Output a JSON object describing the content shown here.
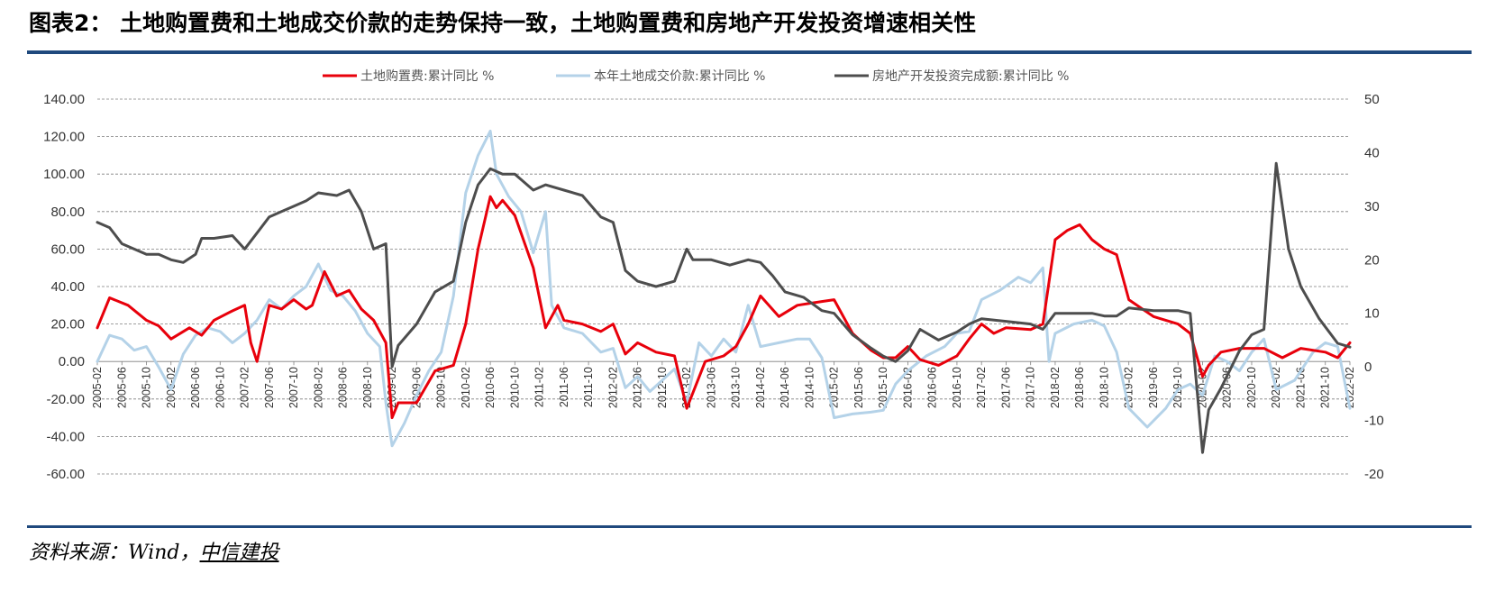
{
  "header": {
    "title": "图表2：  土地购置费和土地成交价款的走势保持一致，土地购置费和房地产开发投资增速相关性"
  },
  "source": {
    "prefix": "资料来源：Wind，",
    "org": "中信建投"
  },
  "colors": {
    "rule": "#1f497d",
    "series_red": "#e8000b",
    "series_light": "#b4d2e8",
    "series_dark": "#4d4d4d"
  },
  "chart_data": {
    "type": "line",
    "x_start": "2005-02",
    "x_end": "2022-02",
    "x_tick_labels": [
      "2005-02",
      "2005-06",
      "2005-10",
      "2006-02",
      "2006-06",
      "2006-10",
      "2007-02",
      "2007-06",
      "2007-10",
      "2008-02",
      "2008-06",
      "2008-10",
      "2009-02",
      "2009-06",
      "2009-10",
      "2010-02",
      "2010-06",
      "2010-10",
      "2011-02",
      "2011-06",
      "2011-10",
      "2012-02",
      "2012-06",
      "2012-10",
      "2013-02",
      "2013-06",
      "2013-10",
      "2014-02",
      "2014-06",
      "2014-10",
      "2015-02",
      "2015-06",
      "2015-10",
      "2016-02",
      "2016-06",
      "2016-10",
      "2017-02",
      "2017-06",
      "2017-10",
      "2018-02",
      "2018-06",
      "2018-10",
      "2019-02",
      "2019-06",
      "2019-10",
      "2020-02",
      "2020-06",
      "2020-10",
      "2021-02",
      "2021-06",
      "2021-10",
      "2022-02"
    ],
    "y_left": {
      "min": -60,
      "max": 140,
      "step": 20,
      "ticks": [
        "140.00",
        "120.00",
        "100.00",
        "80.00",
        "60.00",
        "40.00",
        "20.00",
        "0.00",
        "-20.00",
        "-40.00",
        "-60.00"
      ]
    },
    "y_right": {
      "min": -20,
      "max": 50,
      "step": 10,
      "ticks": [
        "50",
        "40",
        "30",
        "20",
        "10",
        "0",
        "-10",
        "-20"
      ]
    },
    "grid": true,
    "legend_position": "top",
    "series": [
      {
        "name": "土地购置费:累计同比 %",
        "axis": "left",
        "color": "#e8000b",
        "points": [
          [
            "2005-02",
            18
          ],
          [
            "2005-04",
            34
          ],
          [
            "2005-07",
            30
          ],
          [
            "2005-10",
            22
          ],
          [
            "2005-12",
            19
          ],
          [
            "2006-02",
            12
          ],
          [
            "2006-05",
            18
          ],
          [
            "2006-07",
            14
          ],
          [
            "2006-09",
            22
          ],
          [
            "2006-12",
            27
          ],
          [
            "2007-02",
            30
          ],
          [
            "2007-03",
            10
          ],
          [
            "2007-04",
            0
          ],
          [
            "2007-06",
            30
          ],
          [
            "2007-08",
            28
          ],
          [
            "2007-10",
            33
          ],
          [
            "2007-12",
            28
          ],
          [
            "2008-01",
            30
          ],
          [
            "2008-03",
            48
          ],
          [
            "2008-05",
            35
          ],
          [
            "2008-07",
            38
          ],
          [
            "2008-09",
            28
          ],
          [
            "2008-11",
            22
          ],
          [
            "2009-01",
            10
          ],
          [
            "2009-02",
            -30
          ],
          [
            "2009-03",
            -22
          ],
          [
            "2009-06",
            -22
          ],
          [
            "2009-09",
            -5
          ],
          [
            "2009-12",
            -2
          ],
          [
            "2010-02",
            20
          ],
          [
            "2010-04",
            60
          ],
          [
            "2010-06",
            88
          ],
          [
            "2010-07",
            82
          ],
          [
            "2010-08",
            86
          ],
          [
            "2010-10",
            78
          ],
          [
            "2011-01",
            50
          ],
          [
            "2011-03",
            18
          ],
          [
            "2011-05",
            30
          ],
          [
            "2011-06",
            22
          ],
          [
            "2011-09",
            20
          ],
          [
            "2011-12",
            16
          ],
          [
            "2012-02",
            20
          ],
          [
            "2012-04",
            4
          ],
          [
            "2012-06",
            10
          ],
          [
            "2012-09",
            5
          ],
          [
            "2012-12",
            3
          ],
          [
            "2013-02",
            -25
          ],
          [
            "2013-05",
            0
          ],
          [
            "2013-08",
            3
          ],
          [
            "2013-10",
            8
          ],
          [
            "2013-12",
            20
          ],
          [
            "2014-02",
            35
          ],
          [
            "2014-05",
            24
          ],
          [
            "2014-08",
            30
          ],
          [
            "2014-12",
            32
          ],
          [
            "2015-02",
            33
          ],
          [
            "2015-05",
            15
          ],
          [
            "2015-08",
            6
          ],
          [
            "2015-10",
            2
          ],
          [
            "2015-12",
            2
          ],
          [
            "2016-02",
            8
          ],
          [
            "2016-04",
            1
          ],
          [
            "2016-07",
            -2
          ],
          [
            "2016-10",
            3
          ],
          [
            "2016-12",
            12
          ],
          [
            "2017-02",
            20
          ],
          [
            "2017-04",
            15
          ],
          [
            "2017-06",
            18
          ],
          [
            "2017-10",
            17
          ],
          [
            "2017-12",
            20
          ],
          [
            "2018-02",
            65
          ],
          [
            "2018-04",
            70
          ],
          [
            "2018-06",
            73
          ],
          [
            "2018-08",
            65
          ],
          [
            "2018-10",
            60
          ],
          [
            "2018-12",
            57
          ],
          [
            "2019-02",
            33
          ],
          [
            "2019-06",
            24
          ],
          [
            "2019-10",
            20
          ],
          [
            "2019-12",
            15
          ],
          [
            "2020-02",
            -8
          ],
          [
            "2020-03",
            -2
          ],
          [
            "2020-05",
            5
          ],
          [
            "2020-08",
            7
          ],
          [
            "2020-12",
            7
          ],
          [
            "2021-03",
            2
          ],
          [
            "2021-06",
            7
          ],
          [
            "2021-10",
            5
          ],
          [
            "2021-12",
            2
          ],
          [
            "2022-02",
            10
          ]
        ]
      },
      {
        "name": "本年土地成交价款:累计同比 %",
        "axis": "left",
        "color": "#b4d2e8",
        "points": [
          [
            "2005-02",
            0
          ],
          [
            "2005-04",
            14
          ],
          [
            "2005-06",
            12
          ],
          [
            "2005-08",
            6
          ],
          [
            "2005-10",
            8
          ],
          [
            "2005-12",
            -3
          ],
          [
            "2006-02",
            -15
          ],
          [
            "2006-04",
            4
          ],
          [
            "2006-06",
            14
          ],
          [
            "2006-08",
            18
          ],
          [
            "2006-10",
            16
          ],
          [
            "2006-12",
            10
          ],
          [
            "2007-02",
            15
          ],
          [
            "2007-04",
            22
          ],
          [
            "2007-06",
            33
          ],
          [
            "2007-08",
            28
          ],
          [
            "2007-10",
            35
          ],
          [
            "2007-12",
            40
          ],
          [
            "2008-02",
            52
          ],
          [
            "2008-04",
            38
          ],
          [
            "2008-06",
            35
          ],
          [
            "2008-08",
            27
          ],
          [
            "2008-10",
            15
          ],
          [
            "2008-12",
            8
          ],
          [
            "2009-01",
            -22
          ],
          [
            "2009-02",
            -45
          ],
          [
            "2009-04",
            -33
          ],
          [
            "2009-06",
            -18
          ],
          [
            "2009-08",
            -5
          ],
          [
            "2009-10",
            5
          ],
          [
            "2009-12",
            35
          ],
          [
            "2010-02",
            90
          ],
          [
            "2010-04",
            110
          ],
          [
            "2010-06",
            123
          ],
          [
            "2010-07",
            100
          ],
          [
            "2010-09",
            88
          ],
          [
            "2010-11",
            80
          ],
          [
            "2011-01",
            58
          ],
          [
            "2011-03",
            80
          ],
          [
            "2011-04",
            30
          ],
          [
            "2011-06",
            18
          ],
          [
            "2011-09",
            15
          ],
          [
            "2011-12",
            5
          ],
          [
            "2012-02",
            7
          ],
          [
            "2012-04",
            -14
          ],
          [
            "2012-06",
            -8
          ],
          [
            "2012-08",
            -16
          ],
          [
            "2012-10",
            -10
          ],
          [
            "2012-12",
            -4
          ],
          [
            "2013-02",
            -22
          ],
          [
            "2013-04",
            10
          ],
          [
            "2013-06",
            3
          ],
          [
            "2013-08",
            12
          ],
          [
            "2013-10",
            5
          ],
          [
            "2013-12",
            30
          ],
          [
            "2014-02",
            8
          ],
          [
            "2014-05",
            10
          ],
          [
            "2014-08",
            12
          ],
          [
            "2014-10",
            12
          ],
          [
            "2014-12",
            2
          ],
          [
            "2015-02",
            -30
          ],
          [
            "2015-05",
            -28
          ],
          [
            "2015-08",
            -27
          ],
          [
            "2015-10",
            -26
          ],
          [
            "2015-12",
            -12
          ],
          [
            "2016-02",
            -5
          ],
          [
            "2016-05",
            3
          ],
          [
            "2016-08",
            8
          ],
          [
            "2016-10",
            15
          ],
          [
            "2016-12",
            16
          ],
          [
            "2017-02",
            33
          ],
          [
            "2017-05",
            38
          ],
          [
            "2017-08",
            45
          ],
          [
            "2017-10",
            42
          ],
          [
            "2017-12",
            50
          ],
          [
            "2018-01",
            0
          ],
          [
            "2018-02",
            15
          ],
          [
            "2018-05",
            20
          ],
          [
            "2018-08",
            22
          ],
          [
            "2018-10",
            19
          ],
          [
            "2018-12",
            5
          ],
          [
            "2019-02",
            -25
          ],
          [
            "2019-05",
            -35
          ],
          [
            "2019-08",
            -25
          ],
          [
            "2019-10",
            -15
          ],
          [
            "2019-12",
            -12
          ],
          [
            "2020-02",
            -18
          ],
          [
            "2020-04",
            3
          ],
          [
            "2020-06",
            0
          ],
          [
            "2020-08",
            -5
          ],
          [
            "2020-10",
            5
          ],
          [
            "2020-12",
            12
          ],
          [
            "2021-02",
            -15
          ],
          [
            "2021-05",
            -10
          ],
          [
            "2021-08",
            5
          ],
          [
            "2021-10",
            10
          ],
          [
            "2021-12",
            8
          ],
          [
            "2022-02",
            -25
          ]
        ]
      },
      {
        "name": "房地产开发投资完成额:累计同比 %",
        "axis": "right",
        "color": "#4d4d4d",
        "points": [
          [
            "2005-02",
            27
          ],
          [
            "2005-04",
            26
          ],
          [
            "2005-06",
            23
          ],
          [
            "2005-08",
            22
          ],
          [
            "2005-10",
            21
          ],
          [
            "2005-12",
            21
          ],
          [
            "2006-02",
            20
          ],
          [
            "2006-04",
            19.5
          ],
          [
            "2006-06",
            21
          ],
          [
            "2006-07",
            24
          ],
          [
            "2006-09",
            24
          ],
          [
            "2006-12",
            24.5
          ],
          [
            "2007-02",
            22
          ],
          [
            "2007-04",
            25
          ],
          [
            "2007-06",
            28
          ],
          [
            "2007-08",
            29
          ],
          [
            "2007-10",
            30
          ],
          [
            "2007-12",
            31
          ],
          [
            "2008-02",
            32.5
          ],
          [
            "2008-05",
            32
          ],
          [
            "2008-07",
            33
          ],
          [
            "2008-09",
            29
          ],
          [
            "2008-11",
            22
          ],
          [
            "2009-01",
            23
          ],
          [
            "2009-02",
            0
          ],
          [
            "2009-03",
            4
          ],
          [
            "2009-06",
            8
          ],
          [
            "2009-09",
            14
          ],
          [
            "2009-12",
            16
          ],
          [
            "2010-02",
            27
          ],
          [
            "2010-04",
            34
          ],
          [
            "2010-06",
            37
          ],
          [
            "2010-08",
            36
          ],
          [
            "2010-10",
            36
          ],
          [
            "2011-01",
            33
          ],
          [
            "2011-03",
            34
          ],
          [
            "2011-06",
            33
          ],
          [
            "2011-09",
            32
          ],
          [
            "2011-12",
            28
          ],
          [
            "2012-02",
            27
          ],
          [
            "2012-04",
            18
          ],
          [
            "2012-06",
            16
          ],
          [
            "2012-09",
            15
          ],
          [
            "2012-12",
            16
          ],
          [
            "2013-02",
            22
          ],
          [
            "2013-03",
            20
          ],
          [
            "2013-06",
            20
          ],
          [
            "2013-09",
            19
          ],
          [
            "2013-12",
            20
          ],
          [
            "2014-02",
            19.5
          ],
          [
            "2014-04",
            17
          ],
          [
            "2014-06",
            14
          ],
          [
            "2014-09",
            13
          ],
          [
            "2014-12",
            10.5
          ],
          [
            "2015-02",
            10
          ],
          [
            "2015-05",
            6
          ],
          [
            "2015-08",
            3.5
          ],
          [
            "2015-10",
            2
          ],
          [
            "2015-12",
            1
          ],
          [
            "2016-02",
            3
          ],
          [
            "2016-04",
            7
          ],
          [
            "2016-07",
            5
          ],
          [
            "2016-10",
            6.5
          ],
          [
            "2016-12",
            8
          ],
          [
            "2017-02",
            9
          ],
          [
            "2017-06",
            8.5
          ],
          [
            "2017-10",
            8
          ],
          [
            "2017-12",
            7
          ],
          [
            "2018-02",
            10
          ],
          [
            "2018-05",
            10
          ],
          [
            "2018-08",
            10
          ],
          [
            "2018-10",
            9.5
          ],
          [
            "2018-12",
            9.5
          ],
          [
            "2019-02",
            11
          ],
          [
            "2019-06",
            10.5
          ],
          [
            "2019-10",
            10.5
          ],
          [
            "2019-12",
            10
          ],
          [
            "2020-02",
            -16
          ],
          [
            "2020-03",
            -8
          ],
          [
            "2020-05",
            -4
          ],
          [
            "2020-08",
            3
          ],
          [
            "2020-10",
            6
          ],
          [
            "2020-12",
            7
          ],
          [
            "2021-02",
            38
          ],
          [
            "2021-04",
            22
          ],
          [
            "2021-06",
            15
          ],
          [
            "2021-09",
            9
          ],
          [
            "2021-12",
            4.4
          ],
          [
            "2022-02",
            3.7
          ]
        ]
      }
    ]
  }
}
